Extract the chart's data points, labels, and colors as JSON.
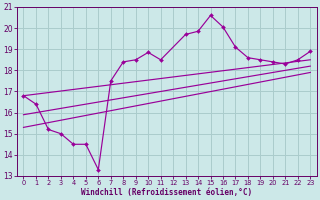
{
  "x": [
    0,
    1,
    2,
    3,
    4,
    5,
    6,
    7,
    8,
    9,
    10,
    11,
    13,
    14,
    15,
    16,
    17,
    18,
    19,
    20,
    21,
    22,
    23
  ],
  "y": [
    16.8,
    16.4,
    15.2,
    15.0,
    14.5,
    14.5,
    13.3,
    17.5,
    18.4,
    18.5,
    18.85,
    18.5,
    19.7,
    19.85,
    20.6,
    20.05,
    19.1,
    18.6,
    18.5,
    18.4,
    18.3,
    18.5,
    18.9
  ],
  "line_color": "#990099",
  "bg_color": "#cce8e8",
  "grid_color": "#aacccc",
  "text_color": "#660066",
  "xlabel": "Windchill (Refroidissement éolien,°C)",
  "ylim": [
    13,
    21
  ],
  "xlim": [
    -0.5,
    23.5
  ],
  "yticks": [
    13,
    14,
    15,
    16,
    17,
    18,
    19,
    20,
    21
  ],
  "xticks": [
    0,
    1,
    2,
    3,
    4,
    5,
    6,
    7,
    8,
    9,
    10,
    11,
    12,
    13,
    14,
    15,
    16,
    17,
    18,
    19,
    20,
    21,
    22,
    23
  ],
  "reg_line_x": [
    0,
    23
  ],
  "reg_line_y_top_start": 16.8,
  "reg_line_y_top_end": 18.5,
  "reg_line_y_mid_start": 15.9,
  "reg_line_y_mid_end": 18.2,
  "reg_line_y_bot_start": 15.3,
  "reg_line_y_bot_end": 17.9
}
